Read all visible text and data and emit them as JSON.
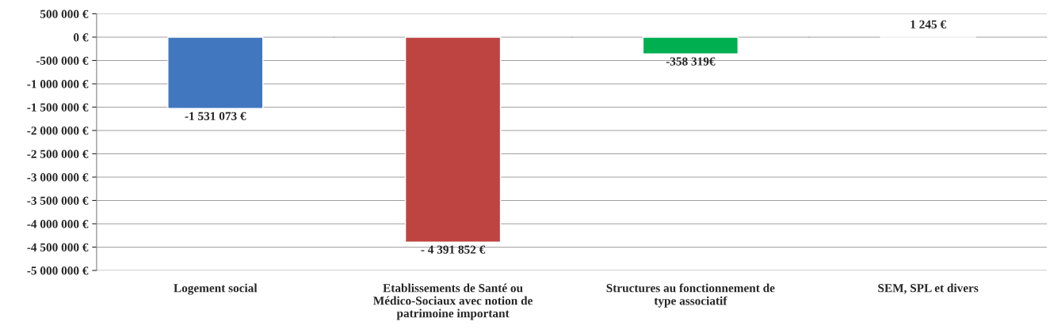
{
  "chart_data": {
    "type": "bar",
    "categories": [
      "Logement social",
      "Etablissements de Santé ou Médico-Sociaux avec notion de patrimoine important",
      "Structures au fonctionnement de type associatif",
      "SEM, SPL et divers"
    ],
    "values": [
      -1531073,
      -4391852,
      -358319,
      1245
    ],
    "colors": [
      "#4177be",
      "#be4441",
      "#00b050",
      "#7f7f7f"
    ],
    "value_labels": [
      "-1 531 073 €",
      "- 4 391 852 €",
      "-358 319€",
      "1 245 €"
    ],
    "ylim": [
      -5000000,
      500000
    ],
    "yticks": [
      {
        "value": 500000,
        "label": "500 000 €"
      },
      {
        "value": 0,
        "label": "0 €"
      },
      {
        "value": -500000,
        "label": "-500 000 €"
      },
      {
        "value": -1000000,
        "label": "-1 000 000 €"
      },
      {
        "value": -1500000,
        "label": "-1 500 000 €"
      },
      {
        "value": -2000000,
        "label": "-2 000 000 €"
      },
      {
        "value": -2500000,
        "label": "-2 500 000 €"
      },
      {
        "value": -3000000,
        "label": "-3 000 000 €"
      },
      {
        "value": -3500000,
        "label": "-3 500 000 €"
      },
      {
        "value": -4000000,
        "label": "-4 000 000 €"
      },
      {
        "value": -4500000,
        "label": "-4 500 000 €"
      },
      {
        "value": -5000000,
        "label": "-5 000 000 €"
      }
    ],
    "grid": "y",
    "legend": false
  }
}
